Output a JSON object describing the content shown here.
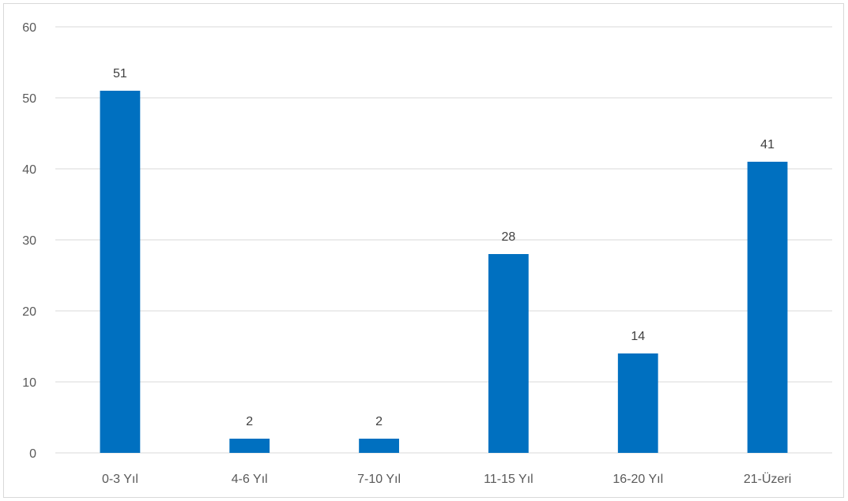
{
  "chart_data": {
    "type": "bar",
    "categories": [
      "0-3 Yıl",
      "4-6 Yıl",
      "7-10 Yıl",
      "11-15 Yıl",
      "16-20 Yıl",
      "21-Üzeri"
    ],
    "values": [
      51,
      2,
      2,
      28,
      14,
      41
    ],
    "y_ticks": [
      "0",
      "10",
      "20",
      "30",
      "40",
      "50",
      "60"
    ],
    "ylim": [
      0,
      60
    ],
    "title": "",
    "xlabel": "",
    "ylabel": "",
    "grid": true,
    "legend": "none",
    "bar_color": "#0070c0",
    "grid_color": "#d9d9d9"
  }
}
